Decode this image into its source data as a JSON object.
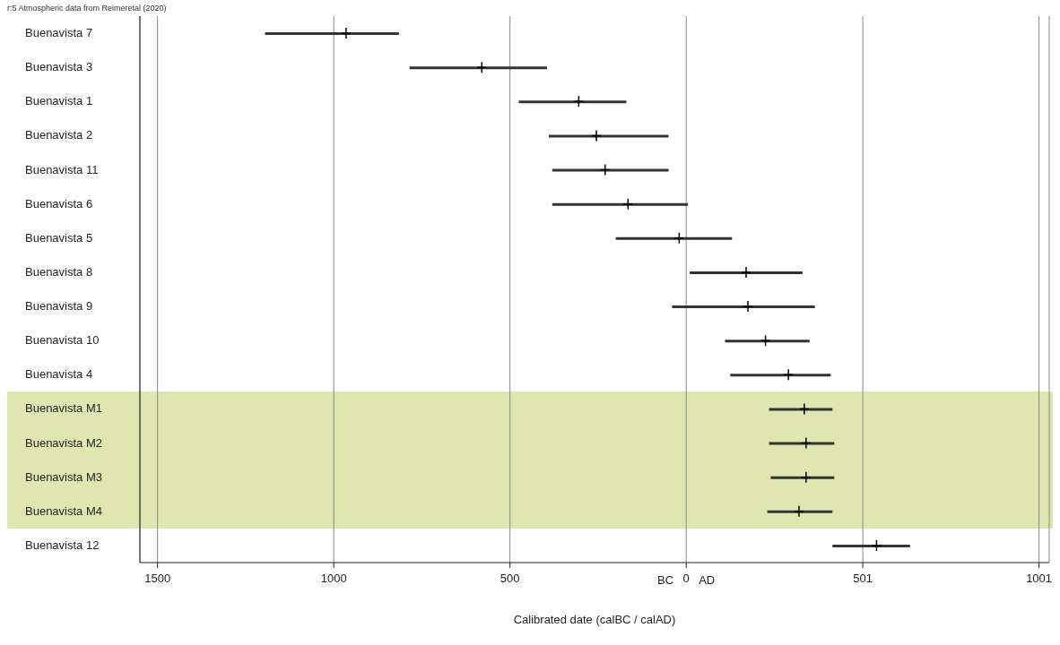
{
  "chart_data": {
    "type": "bar",
    "orientation": "horizontal",
    "xlabel": "Calibrated date (calBC / calAD)",
    "annotations": [
      "r:5 Atmospheric data from Reimeretal (2020)",
      "BC",
      "AD"
    ],
    "categories": [
      "Buenavista 7",
      "Buenavista 3",
      "Buenavista 1",
      "Buenavista 2",
      "Buenavista 11",
      "Buenavista 6",
      "Buenavista 5",
      "Buenavista 8",
      "Buenavista 9",
      "Buenavista 10",
      "Buenavista 4",
      "Buenavista M1",
      "Buenavista M2",
      "Buenavista M3",
      "Buenavista M4",
      "Buenavista 12"
    ],
    "series": [
      {
        "type": "bar",
        "color": "#333333",
        "base": [
          -1195,
          -785,
          -475,
          -390,
          -380,
          -380,
          -200,
          10,
          -40,
          110,
          125,
          235,
          235,
          240,
          230,
          415
        ],
        "values": [
          380,
          390,
          305,
          340,
          330,
          385,
          330,
          320,
          405,
          240,
          285,
          180,
          185,
          180,
          185,
          220
        ]
      },
      {
        "type": "scatter",
        "marker": "cross",
        "color": "#000000",
        "values": [
          -965,
          -580,
          -305,
          -255,
          -230,
          -165,
          -20,
          170,
          175,
          225,
          290,
          335,
          340,
          340,
          320,
          540
        ]
      }
    ],
    "bands": [
      {
        "axis": "y",
        "from": "Buenavista M1",
        "to": "Buenavista M4",
        "color": "#dfe6b0"
      }
    ],
    "xlim": [
      -1550,
      1030
    ],
    "xticks": [
      {
        "value": -1500,
        "label": "1500"
      },
      {
        "value": -1000,
        "label": "1000"
      },
      {
        "value": -500,
        "label": "500"
      },
      0,
      501,
      1001
    ],
    "grid": "x",
    "legend": false
  }
}
